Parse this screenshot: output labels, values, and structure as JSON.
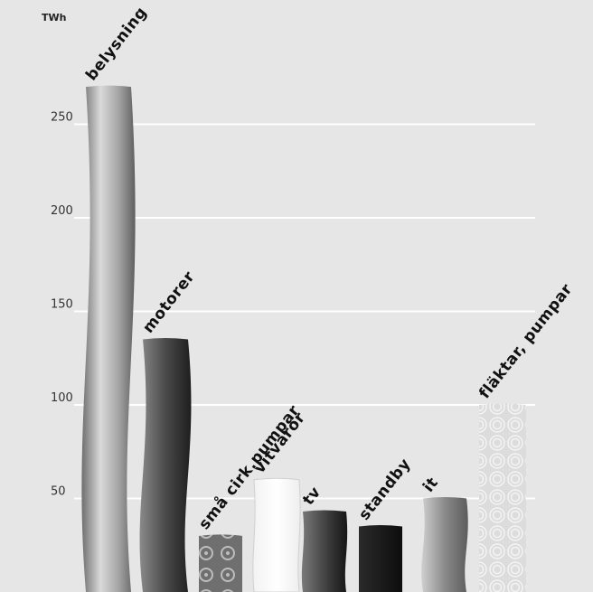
{
  "chart_data": {
    "type": "bar",
    "ylabel": "TWh",
    "ylim": [
      0,
      300
    ],
    "yticks": [
      50,
      100,
      150,
      200,
      250
    ],
    "grid": true,
    "categories": [
      "belysning",
      "motorer",
      "små cirk.pumpar",
      "vitvaror",
      "tv",
      "standby",
      "it",
      "fläktar, pumpar"
    ],
    "values": [
      270,
      135,
      30,
      60,
      43,
      35,
      50,
      100
    ],
    "colors": [
      "#9a9a9a",
      "#5a5a5a",
      "#7a7a7a",
      "#ffffff",
      "#3d3d3d",
      "#1c1c1c",
      "#8e8e8e",
      "#d4d4d4"
    ]
  }
}
